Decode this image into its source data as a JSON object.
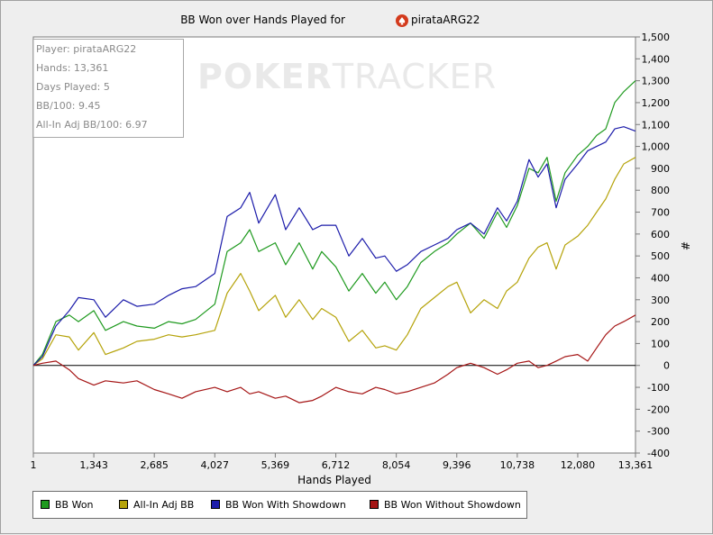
{
  "chart_data": {
    "type": "line",
    "title": "BB Won over Hands Played for",
    "player": "pirataARG22",
    "xlabel": "Hands Played",
    "ylabel": "#",
    "xlim": [
      1,
      13361
    ],
    "ylim": [
      -400,
      1500
    ],
    "x_ticks": [
      1,
      1343,
      2685,
      4027,
      5369,
      6712,
      8054,
      9396,
      10738,
      12080,
      13361
    ],
    "x_tick_labels": [
      "1",
      "1,343",
      "2,685",
      "4,027",
      "5,369",
      "6,712",
      "8,054",
      "9,396",
      "10,738",
      "12,080",
      "13,361"
    ],
    "y_ticks": [
      -400,
      -300,
      -200,
      -100,
      0,
      100,
      200,
      300,
      400,
      500,
      600,
      700,
      800,
      900,
      1000,
      1100,
      1200,
      1300,
      1400,
      1500
    ],
    "y_tick_labels": [
      "-400",
      "-300",
      "-200",
      "-100",
      "0",
      "100",
      "200",
      "300",
      "400",
      "500",
      "600",
      "700",
      "800",
      "900",
      "1,000",
      "1,100",
      "1,200",
      "1,300",
      "1,400",
      "1,500"
    ],
    "legend_position": "bottom",
    "series": [
      {
        "name": "BB Won",
        "color": "#1f9a1f",
        "x": [
          1,
          200,
          500,
          800,
          1000,
          1343,
          1600,
          2000,
          2300,
          2685,
          3000,
          3300,
          3600,
          4027,
          4300,
          4600,
          4800,
          5000,
          5369,
          5600,
          5900,
          6200,
          6400,
          6712,
          7000,
          7300,
          7600,
          7800,
          8054,
          8300,
          8600,
          8900,
          9200,
          9396,
          9700,
          10000,
          10300,
          10500,
          10738,
          11000,
          11200,
          11400,
          11600,
          11800,
          12080,
          12300,
          12500,
          12700,
          12900,
          13100,
          13361
        ],
        "values": [
          0,
          50,
          200,
          230,
          200,
          250,
          160,
          200,
          180,
          170,
          200,
          190,
          210,
          280,
          520,
          560,
          620,
          520,
          560,
          460,
          560,
          440,
          520,
          450,
          340,
          420,
          330,
          380,
          300,
          360,
          470,
          520,
          560,
          600,
          650,
          580,
          700,
          630,
          730,
          900,
          880,
          950,
          750,
          880,
          960,
          1000,
          1050,
          1080,
          1200,
          1250,
          1300
        ]
      },
      {
        "name": "All-In Adj BB",
        "color": "#b5a30a",
        "x": [
          1,
          200,
          500,
          800,
          1000,
          1343,
          1600,
          2000,
          2300,
          2685,
          3000,
          3300,
          3600,
          4027,
          4300,
          4600,
          4800,
          5000,
          5369,
          5600,
          5900,
          6200,
          6400,
          6712,
          7000,
          7300,
          7600,
          7800,
          8054,
          8300,
          8600,
          8900,
          9200,
          9396,
          9700,
          10000,
          10300,
          10500,
          10738,
          11000,
          11200,
          11400,
          11600,
          11800,
          12080,
          12300,
          12500,
          12700,
          12900,
          13100,
          13361
        ],
        "values": [
          0,
          30,
          140,
          130,
          70,
          150,
          50,
          80,
          110,
          120,
          140,
          130,
          140,
          160,
          330,
          420,
          340,
          250,
          320,
          220,
          300,
          210,
          260,
          220,
          110,
          160,
          80,
          90,
          70,
          140,
          260,
          310,
          360,
          380,
          240,
          300,
          260,
          340,
          380,
          490,
          540,
          560,
          440,
          550,
          590,
          640,
          700,
          760,
          850,
          920,
          950
        ]
      },
      {
        "name": "BB Won With Showdown",
        "color": "#1c1caa",
        "x": [
          1,
          200,
          500,
          800,
          1000,
          1343,
          1600,
          2000,
          2300,
          2685,
          3000,
          3300,
          3600,
          4027,
          4300,
          4600,
          4800,
          5000,
          5369,
          5600,
          5900,
          6200,
          6400,
          6712,
          7000,
          7300,
          7600,
          7800,
          8054,
          8300,
          8600,
          8900,
          9200,
          9396,
          9700,
          10000,
          10300,
          10500,
          10738,
          11000,
          11200,
          11400,
          11600,
          11800,
          12080,
          12300,
          12500,
          12700,
          12900,
          13100,
          13361
        ],
        "values": [
          0,
          40,
          180,
          250,
          310,
          300,
          220,
          300,
          270,
          280,
          320,
          350,
          360,
          420,
          680,
          720,
          790,
          650,
          780,
          620,
          720,
          620,
          640,
          640,
          500,
          580,
          490,
          500,
          430,
          460,
          520,
          550,
          580,
          620,
          650,
          600,
          720,
          660,
          750,
          940,
          860,
          920,
          720,
          850,
          920,
          980,
          1000,
          1020,
          1080,
          1090,
          1070
        ]
      },
      {
        "name": "BB Won Without Showdown",
        "color": "#a51515",
        "x": [
          1,
          200,
          500,
          800,
          1000,
          1343,
          1600,
          2000,
          2300,
          2685,
          3000,
          3300,
          3600,
          4027,
          4300,
          4600,
          4800,
          5000,
          5369,
          5600,
          5900,
          6200,
          6400,
          6712,
          7000,
          7300,
          7600,
          7800,
          8054,
          8300,
          8600,
          8900,
          9200,
          9396,
          9700,
          10000,
          10300,
          10500,
          10738,
          11000,
          11200,
          11400,
          11600,
          11800,
          12080,
          12300,
          12500,
          12700,
          12900,
          13100,
          13361
        ],
        "values": [
          0,
          10,
          20,
          -20,
          -60,
          -90,
          -70,
          -80,
          -70,
          -110,
          -130,
          -150,
          -120,
          -100,
          -120,
          -100,
          -130,
          -120,
          -150,
          -140,
          -170,
          -160,
          -140,
          -100,
          -120,
          -130,
          -100,
          -110,
          -130,
          -120,
          -100,
          -80,
          -40,
          -10,
          10,
          -10,
          -40,
          -20,
          10,
          20,
          -10,
          0,
          20,
          40,
          50,
          20,
          80,
          140,
          180,
          200,
          230
        ]
      }
    ]
  },
  "stats": {
    "player": "Player: pirataARG22",
    "hands": "Hands: 13,361",
    "days": "Days Played: 5",
    "bb100": "BB/100: 9.45",
    "allin_bb100": "All-In Adj BB/100: 6.97"
  },
  "watermark": {
    "poker": "POKER",
    "tracker": "TRACKER"
  }
}
